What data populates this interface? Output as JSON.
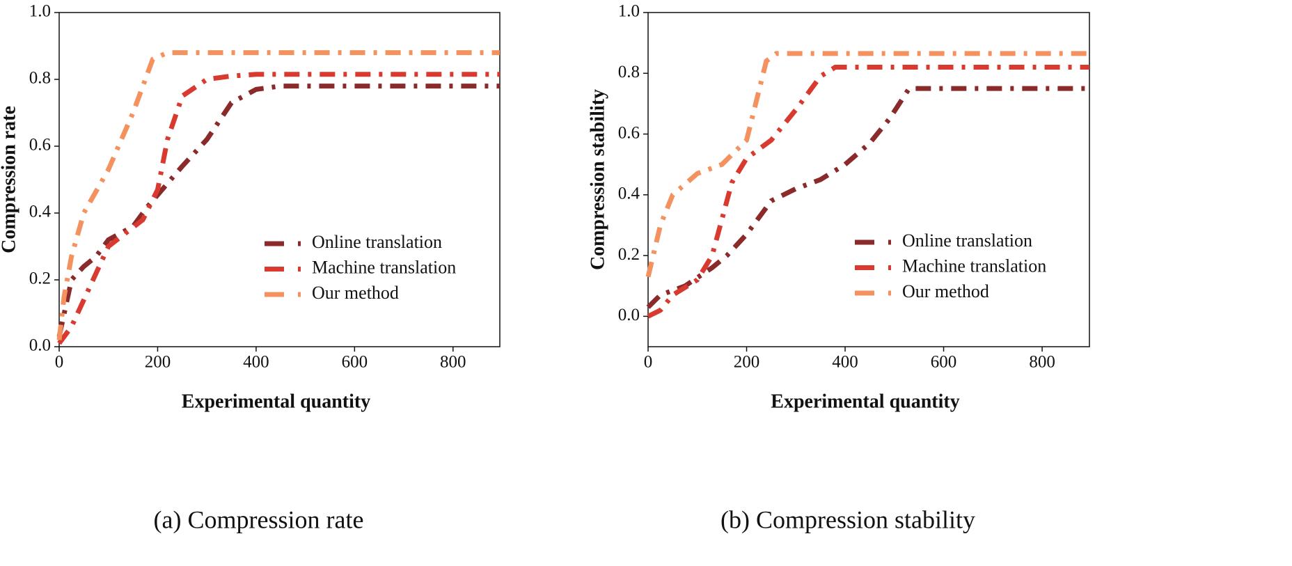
{
  "chart_data": [
    {
      "type": "line",
      "caption": "(a) Compression rate",
      "x_label": "Experimental quantity",
      "y_label": "Compression rate",
      "xlim": [
        0,
        895
      ],
      "ylim": [
        0,
        1
      ],
      "xticks": [
        0,
        200,
        400,
        600,
        800
      ],
      "yticks": [
        {
          "value": 0,
          "label": "0.0"
        },
        0.2,
        0.4,
        0.6,
        0.8,
        {
          "value": 1,
          "label": "1.0"
        }
      ],
      "series": [
        {
          "name": "Online translation",
          "color": "#8b2a2a",
          "x": [
            0,
            25,
            50,
            75,
            100,
            150,
            180,
            250,
            300,
            350,
            400,
            450,
            895
          ],
          "values": [
            0.03,
            0.2,
            0.24,
            0.27,
            0.32,
            0.36,
            0.42,
            0.54,
            0.62,
            0.73,
            0.77,
            0.78,
            0.78
          ]
        },
        {
          "name": "Machine translation",
          "color": "#d93a2f",
          "x": [
            0,
            25,
            75,
            100,
            170,
            200,
            220,
            250,
            300,
            350,
            400,
            895
          ],
          "values": [
            0.01,
            0.06,
            0.22,
            0.3,
            0.38,
            0.47,
            0.62,
            0.75,
            0.8,
            0.81,
            0.815,
            0.815
          ]
        },
        {
          "name": "Our method",
          "color": "#f4925f",
          "x": [
            0,
            10,
            25,
            50,
            100,
            150,
            190,
            220,
            895
          ],
          "values": [
            0.02,
            0.15,
            0.27,
            0.4,
            0.53,
            0.7,
            0.86,
            0.88,
            0.88
          ]
        }
      ]
    },
    {
      "type": "line",
      "caption": "(b) Compression stability",
      "x_label": "Experimental quantity",
      "y_label": "Compression stability",
      "xlim": [
        0,
        896
      ],
      "ylim": [
        -0.1,
        1
      ],
      "xticks": [
        0,
        200,
        400,
        600,
        800
      ],
      "yticks": [
        {
          "value": 0,
          "label": "0.0"
        },
        0.2,
        0.4,
        0.6,
        0.8,
        {
          "value": 1,
          "label": "1.0"
        }
      ],
      "series": [
        {
          "name": "Online translation",
          "color": "#8b2a2a",
          "x": [
            0,
            25,
            75,
            130,
            160,
            200,
            250,
            300,
            350,
            400,
            450,
            490,
            530,
            896
          ],
          "values": [
            0.03,
            0.07,
            0.1,
            0.16,
            0.2,
            0.27,
            0.38,
            0.42,
            0.45,
            0.5,
            0.57,
            0.65,
            0.75,
            0.75
          ]
        },
        {
          "name": "Machine translation",
          "color": "#d93a2f",
          "x": [
            0,
            25,
            50,
            100,
            130,
            170,
            200,
            250,
            300,
            350,
            380,
            896
          ],
          "values": [
            0,
            0.02,
            0.07,
            0.12,
            0.2,
            0.44,
            0.52,
            0.58,
            0.68,
            0.79,
            0.82,
            0.82
          ]
        },
        {
          "name": "Our method",
          "color": "#f4925f",
          "x": [
            0,
            25,
            50,
            100,
            150,
            200,
            240,
            260,
            896
          ],
          "values": [
            0.13,
            0.3,
            0.4,
            0.47,
            0.5,
            0.58,
            0.84,
            0.865,
            0.865
          ]
        }
      ]
    }
  ]
}
